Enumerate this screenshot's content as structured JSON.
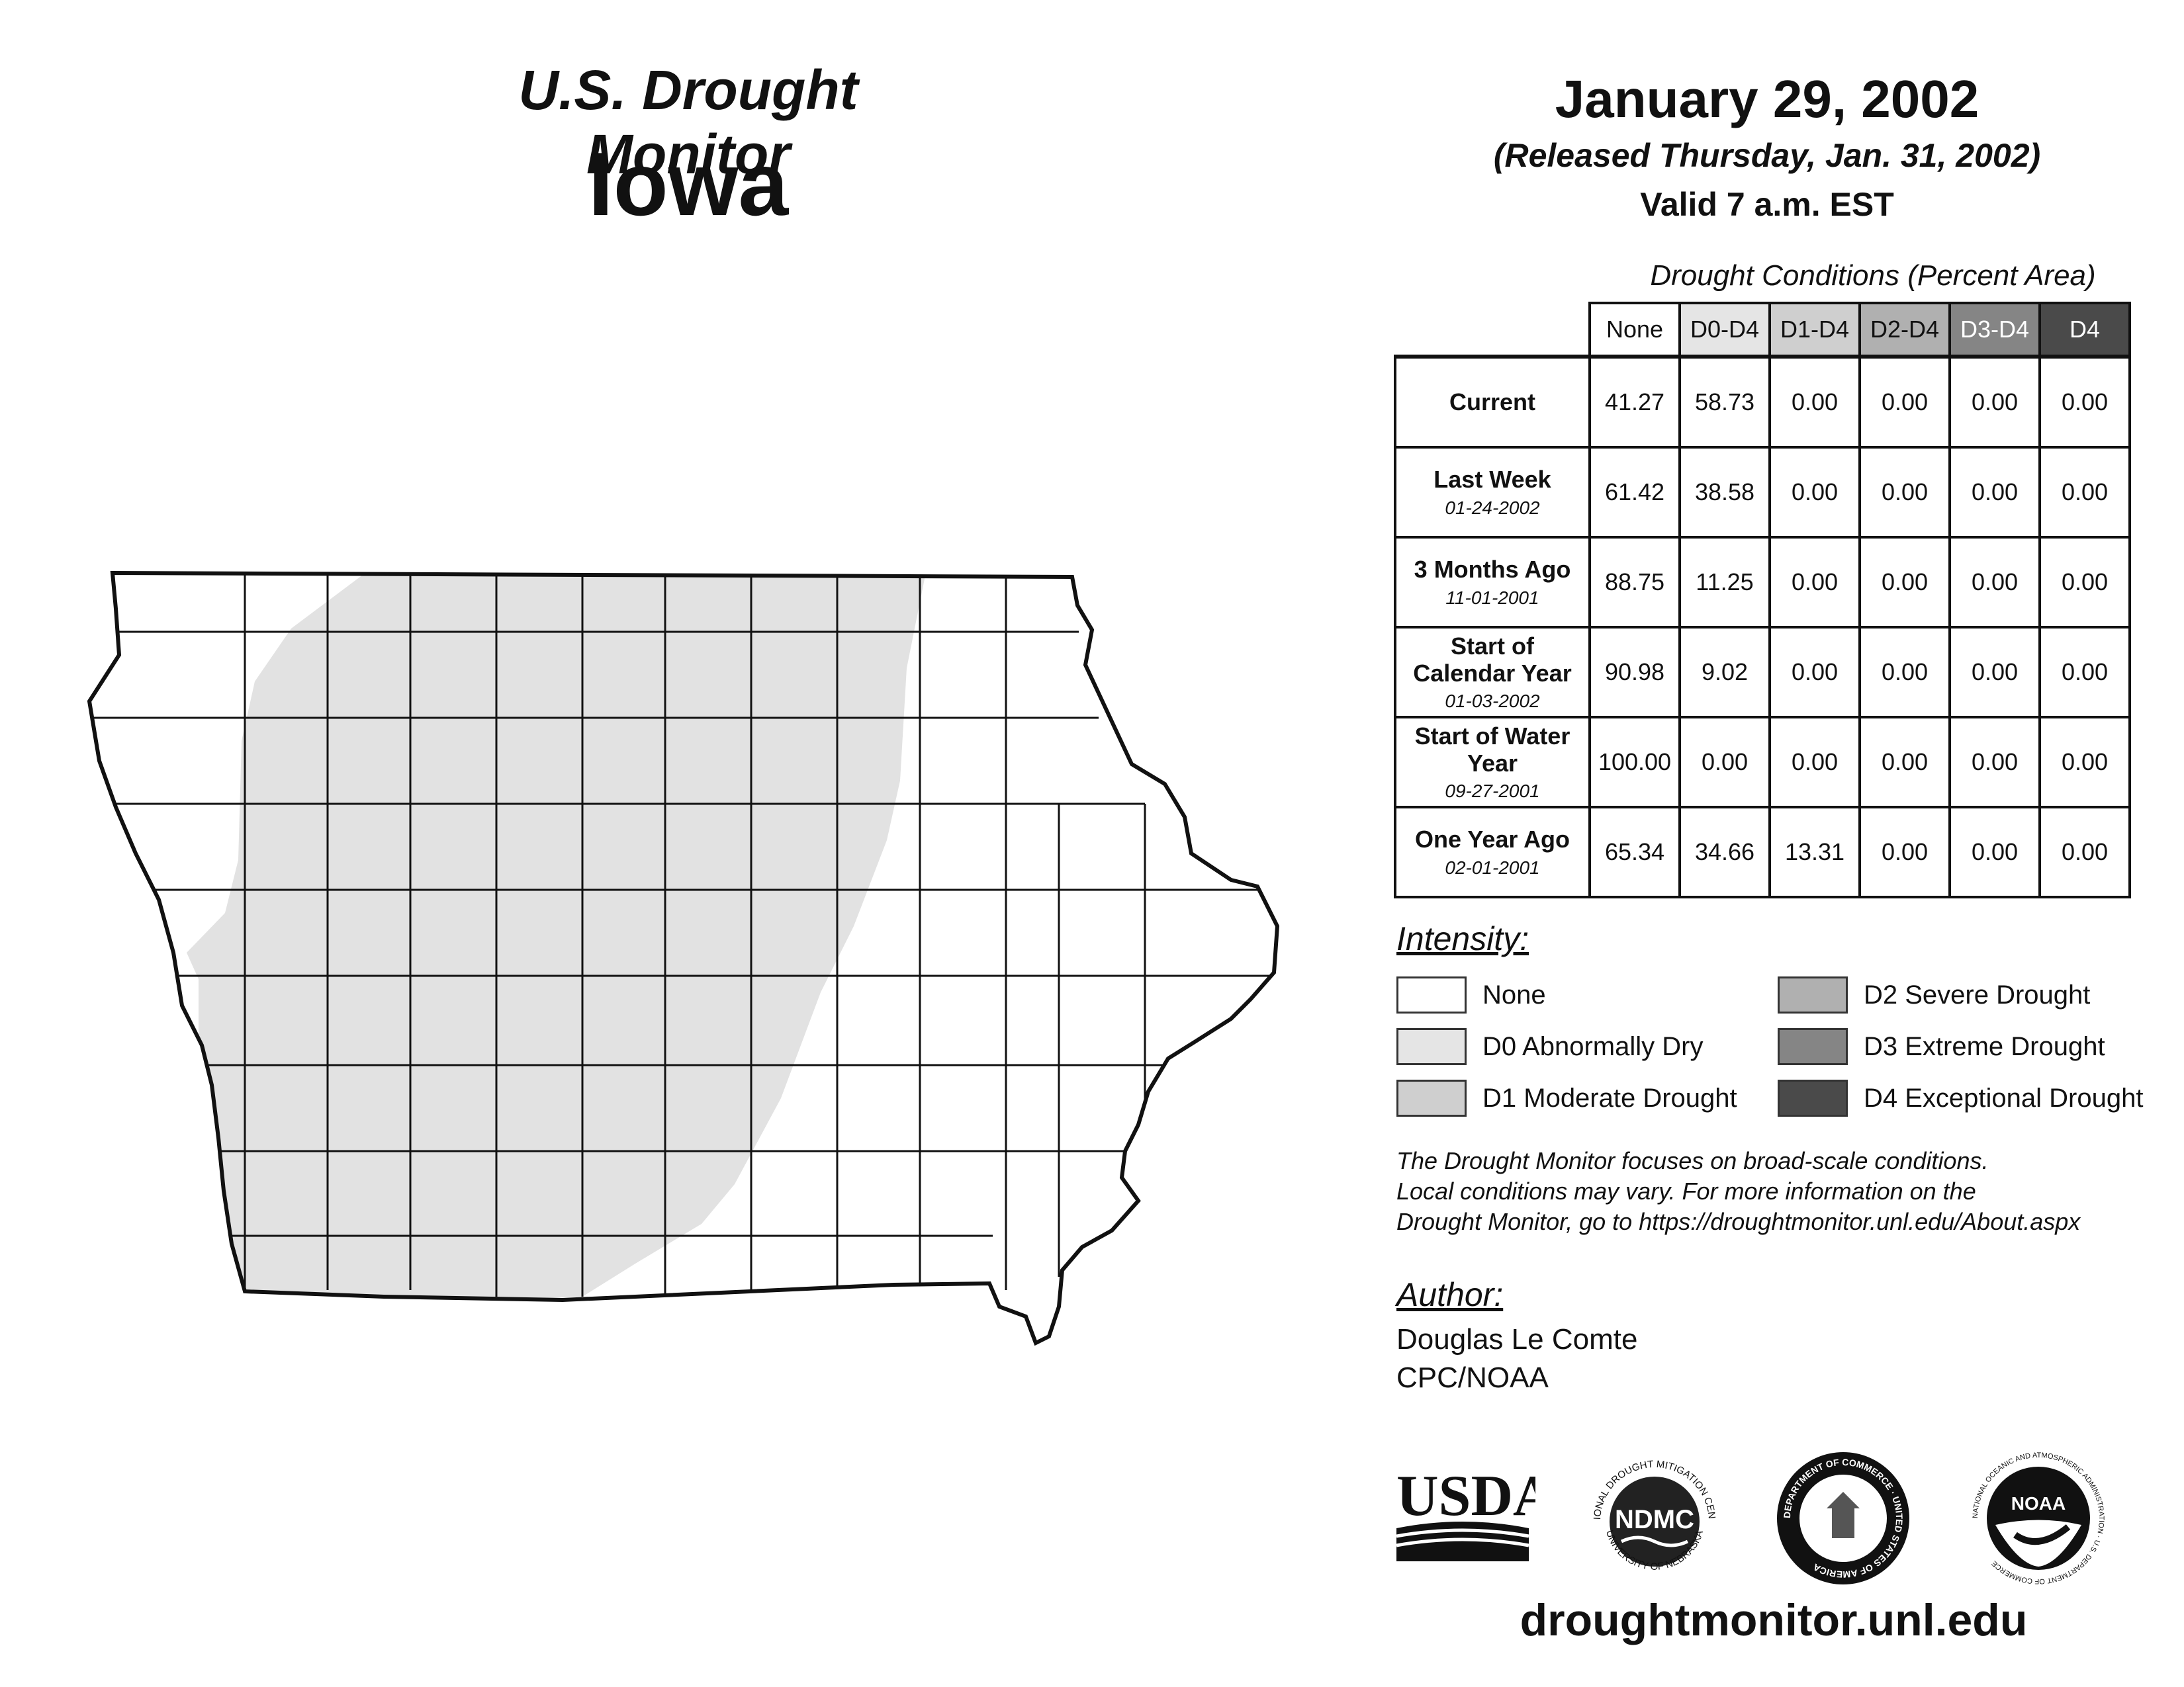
{
  "header": {
    "title": "U.S. Drought Monitor",
    "state": "Iowa",
    "date": "January 29, 2002",
    "released": "(Released Thursday, Jan. 31, 2002)",
    "valid": "Valid 7 a.m. EST"
  },
  "table": {
    "caption": "Drought Conditions (Percent Area)",
    "columns": [
      "None",
      "D0-D4",
      "D1-D4",
      "D2-D4",
      "D3-D4",
      "D4"
    ],
    "rows": [
      {
        "label": "Current",
        "date": "",
        "values": [
          "41.27",
          "58.73",
          "0.00",
          "0.00",
          "0.00",
          "0.00"
        ]
      },
      {
        "label": "Last Week",
        "date": "01-24-2002",
        "values": [
          "61.42",
          "38.58",
          "0.00",
          "0.00",
          "0.00",
          "0.00"
        ]
      },
      {
        "label": "3 Months Ago",
        "date": "11-01-2001",
        "values": [
          "88.75",
          "11.25",
          "0.00",
          "0.00",
          "0.00",
          "0.00"
        ]
      },
      {
        "label": "Start of Calendar Year",
        "date": "01-03-2002",
        "values": [
          "90.98",
          "9.02",
          "0.00",
          "0.00",
          "0.00",
          "0.00"
        ]
      },
      {
        "label": "Start of Water Year",
        "date": "09-27-2001",
        "values": [
          "100.00",
          "0.00",
          "0.00",
          "0.00",
          "0.00",
          "0.00"
        ]
      },
      {
        "label": "One Year Ago",
        "date": "02-01-2001",
        "values": [
          "65.34",
          "34.66",
          "13.31",
          "0.00",
          "0.00",
          "0.00"
        ]
      }
    ]
  },
  "legend": {
    "title": "Intensity:",
    "items": [
      {
        "label": "None",
        "color": "#ffffff"
      },
      {
        "label": "D0 Abnormally Dry",
        "color": "#e5e5e5"
      },
      {
        "label": "D1 Moderate Drought",
        "color": "#cfcfcf"
      },
      {
        "label": "D2 Severe Drought",
        "color": "#b0b0b0"
      },
      {
        "label": "D3 Extreme Drought",
        "color": "#858585"
      },
      {
        "label": "D4 Exceptional Drought",
        "color": "#4a4a4a"
      }
    ]
  },
  "note": {
    "line1": "The Drought Monitor focuses on broad-scale conditions.",
    "line2": "Local conditions may vary. For more information on the",
    "line3": "Drought Monitor, go to https://droughtmonitor.unl.edu/About.aspx"
  },
  "author": {
    "heading": "Author:",
    "name": "Douglas Le Comte",
    "org": "CPC/NOAA"
  },
  "logos": {
    "usda": "USDA",
    "ndmc": "NDMC",
    "ndmc_ring_top": "NATIONAL DROUGHT MITIGATION CENTER",
    "ndmc_ring_bottom": "UNIVERSITY OF NEBRASKA",
    "doc_ring": "DEPARTMENT OF COMMERCE · UNITED STATES OF AMERICA",
    "noaa": "NOAA",
    "noaa_ring": "NATIONAL OCEANIC AND ATMOSPHERIC ADMINISTRATION · U.S. DEPARTMENT OF COMMERCE"
  },
  "map": {
    "drought_area": "D0",
    "fill_color": "#e2e2e2"
  },
  "footer": {
    "url": "droughtmonitor.unl.edu"
  }
}
